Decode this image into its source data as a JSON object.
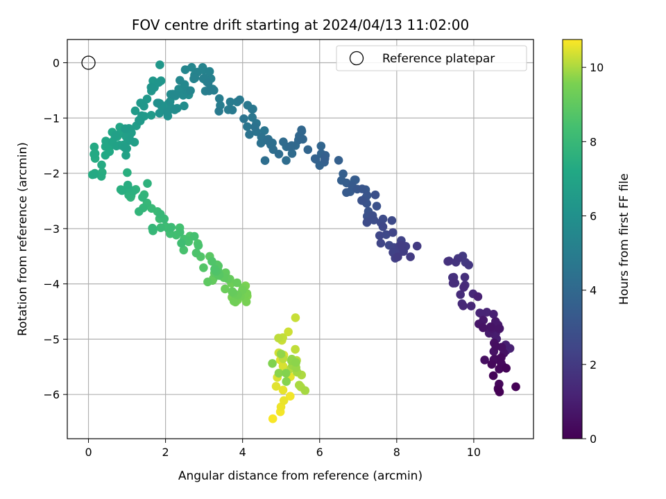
{
  "chart_data": {
    "type": "scatter",
    "title": "FOV centre drift starting at 2024/04/13 11:02:00",
    "xlabel": "Angular distance from reference (arcmin)",
    "ylabel": "Rotation from reference (arcmin)",
    "colorbar_label": "Hours from first FF file",
    "xlim": [
      -0.55,
      11.55
    ],
    "ylim": [
      -6.8,
      0.42
    ],
    "clim": [
      0,
      10.75
    ],
    "xticks": [
      0,
      2,
      4,
      6,
      8,
      10
    ],
    "yticks": [
      0,
      -1,
      -2,
      -3,
      -4,
      -5,
      -6
    ],
    "cticks": [
      0,
      2,
      4,
      6,
      8,
      10
    ],
    "grid": true,
    "legend": {
      "position": "top-right",
      "entries": [
        "Reference platepar"
      ]
    },
    "colormap": "viridis",
    "reference_point": {
      "x": 0,
      "y": 0,
      "marker": "open-circle",
      "label": "Reference platepar"
    },
    "segments": [
      {
        "t": [
          0.0,
          1.1
        ],
        "count": 36,
        "points": [
          [
            10.9,
            -5.75
          ],
          [
            10.6,
            -5.6
          ],
          [
            10.7,
            -5.3
          ],
          [
            10.5,
            -5.0
          ],
          [
            10.4,
            -4.75
          ],
          [
            10.8,
            -5.1
          ]
        ]
      },
      {
        "t": [
          1.1,
          2.0
        ],
        "count": 24,
        "points": [
          [
            10.2,
            -4.55
          ],
          [
            10.0,
            -4.3
          ],
          [
            9.7,
            -4.15
          ],
          [
            9.5,
            -3.95
          ],
          [
            9.4,
            -3.75
          ],
          [
            9.8,
            -3.6
          ]
        ]
      },
      {
        "t": [
          2.0,
          3.6
        ],
        "count": 45,
        "points": [
          [
            8.4,
            -3.5
          ],
          [
            8.0,
            -3.25
          ],
          [
            7.5,
            -2.9
          ],
          [
            7.3,
            -2.6
          ],
          [
            7.0,
            -2.3
          ],
          [
            6.6,
            -2.1
          ]
        ]
      },
      {
        "t": [
          3.6,
          5.0
        ],
        "count": 50,
        "points": [
          [
            6.3,
            -1.8
          ],
          [
            5.8,
            -1.6
          ],
          [
            5.5,
            -1.3
          ],
          [
            5.0,
            -1.7
          ],
          [
            4.6,
            -1.4
          ],
          [
            4.1,
            -0.85
          ],
          [
            3.5,
            -0.75
          ]
        ]
      },
      {
        "t": [
          5.0,
          6.3
        ],
        "count": 55,
        "points": [
          [
            3.3,
            -0.5
          ],
          [
            2.9,
            -0.15
          ],
          [
            2.6,
            -0.4
          ],
          [
            2.3,
            -0.7
          ],
          [
            2.0,
            -0.9
          ],
          [
            1.7,
            -0.3
          ]
        ]
      },
      {
        "t": [
          6.3,
          7.4
        ],
        "count": 50,
        "points": [
          [
            1.5,
            -0.8
          ],
          [
            1.2,
            -1.2
          ],
          [
            0.9,
            -1.5
          ],
          [
            0.6,
            -1.3
          ],
          [
            0.4,
            -1.7
          ],
          [
            0.2,
            -2.0
          ]
        ]
      },
      {
        "t": [
          7.4,
          8.6
        ],
        "count": 42,
        "points": [
          [
            0.9,
            -2.1
          ],
          [
            1.2,
            -2.4
          ],
          [
            1.6,
            -2.7
          ],
          [
            2.0,
            -3.0
          ],
          [
            2.4,
            -3.1
          ],
          [
            2.9,
            -3.3
          ]
        ]
      },
      {
        "t": [
          8.6,
          9.6
        ],
        "count": 40,
        "points": [
          [
            3.0,
            -3.6
          ],
          [
            3.3,
            -3.8
          ],
          [
            3.6,
            -4.0
          ],
          [
            3.9,
            -4.3
          ],
          [
            4.1,
            -4.2
          ]
        ]
      },
      {
        "t": [
          9.6,
          10.7
        ],
        "count": 38,
        "points": [
          [
            4.9,
            -5.4
          ],
          [
            5.1,
            -5.6
          ],
          [
            5.3,
            -5.3
          ],
          [
            5.5,
            -5.9
          ],
          [
            5.1,
            -4.9
          ],
          [
            5.0,
            -6.45
          ]
        ]
      }
    ]
  }
}
